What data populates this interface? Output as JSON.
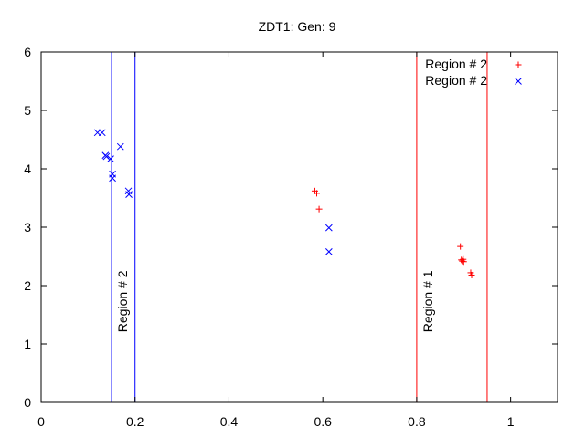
{
  "chart_data": {
    "type": "scatter",
    "title": "ZDT1: Gen: 9",
    "xlabel": "",
    "ylabel": "",
    "xlim": [
      0,
      1.1
    ],
    "ylim": [
      0,
      6
    ],
    "x_ticks": [
      0,
      0.2,
      0.4,
      0.6,
      0.8,
      1
    ],
    "x_tick_labels": [
      "0",
      "0.2",
      "0.4",
      "0.6",
      "0.8",
      "1"
    ],
    "y_ticks": [
      0,
      1,
      2,
      3,
      4,
      5,
      6
    ],
    "y_tick_labels": [
      "0",
      "1",
      "2",
      "3",
      "4",
      "5",
      "6"
    ],
    "grid": false,
    "legend_position": "top-right",
    "series": [
      {
        "name": "Region # 2",
        "marker": "plus",
        "color": "#ff0000",
        "points": [
          [
            0.583,
            3.62
          ],
          [
            0.587,
            3.58
          ],
          [
            0.592,
            3.31
          ],
          [
            0.893,
            2.67
          ],
          [
            0.895,
            2.44
          ],
          [
            0.897,
            2.42
          ],
          [
            0.899,
            2.45
          ],
          [
            0.9,
            2.41
          ],
          [
            0.915,
            2.22
          ],
          [
            0.917,
            2.18
          ]
        ]
      },
      {
        "name": "Region # 2",
        "marker": "cross",
        "color": "#0000ff",
        "points": [
          [
            0.12,
            4.62
          ],
          [
            0.13,
            4.62
          ],
          [
            0.137,
            4.23
          ],
          [
            0.139,
            4.21
          ],
          [
            0.148,
            4.17
          ],
          [
            0.152,
            3.91
          ],
          [
            0.152,
            3.84
          ],
          [
            0.169,
            4.38
          ],
          [
            0.186,
            3.62
          ],
          [
            0.187,
            3.56
          ],
          [
            0.613,
            2.99
          ],
          [
            0.613,
            2.58
          ]
        ]
      }
    ],
    "regions": [
      {
        "label": "Region # 2",
        "x_min": 0.15,
        "x_max": 0.2,
        "color": "#0000ff",
        "label_y": 1.2
      },
      {
        "label": "Region # 1",
        "x_min": 0.8,
        "x_max": 0.95,
        "color": "#ff0000",
        "label_y": 1.2
      }
    ]
  }
}
